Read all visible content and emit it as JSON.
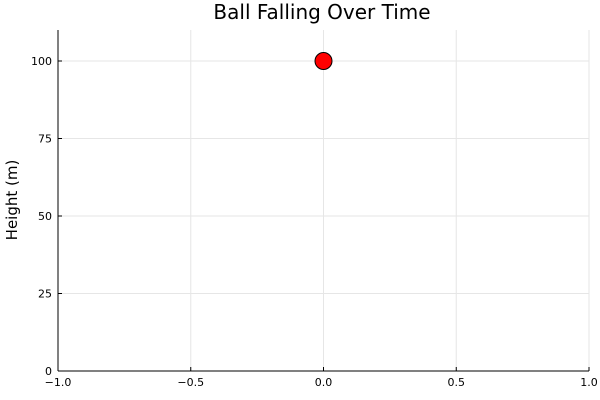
{
  "chart_data": {
    "type": "scatter",
    "title": "Ball Falling Over Time",
    "xlabel": "",
    "ylabel": "Height (m)",
    "xlim": [
      -1.0,
      1.0
    ],
    "ylim": [
      0,
      110
    ],
    "x_ticks": [
      -1.0,
      -0.5,
      0.0,
      0.5,
      1.0
    ],
    "x_tick_labels": [
      "−1.0",
      "−0.5",
      "0.0",
      "0.5",
      "1.0"
    ],
    "y_ticks": [
      0,
      25,
      50,
      75,
      100
    ],
    "y_tick_labels": [
      "0",
      "25",
      "50",
      "75",
      "100"
    ],
    "grid": true,
    "legend": "none",
    "series": [
      {
        "x": [
          0.0
        ],
        "y": [
          100
        ],
        "color": "#ff0000",
        "marker_edge_color": "#000000"
      }
    ]
  }
}
